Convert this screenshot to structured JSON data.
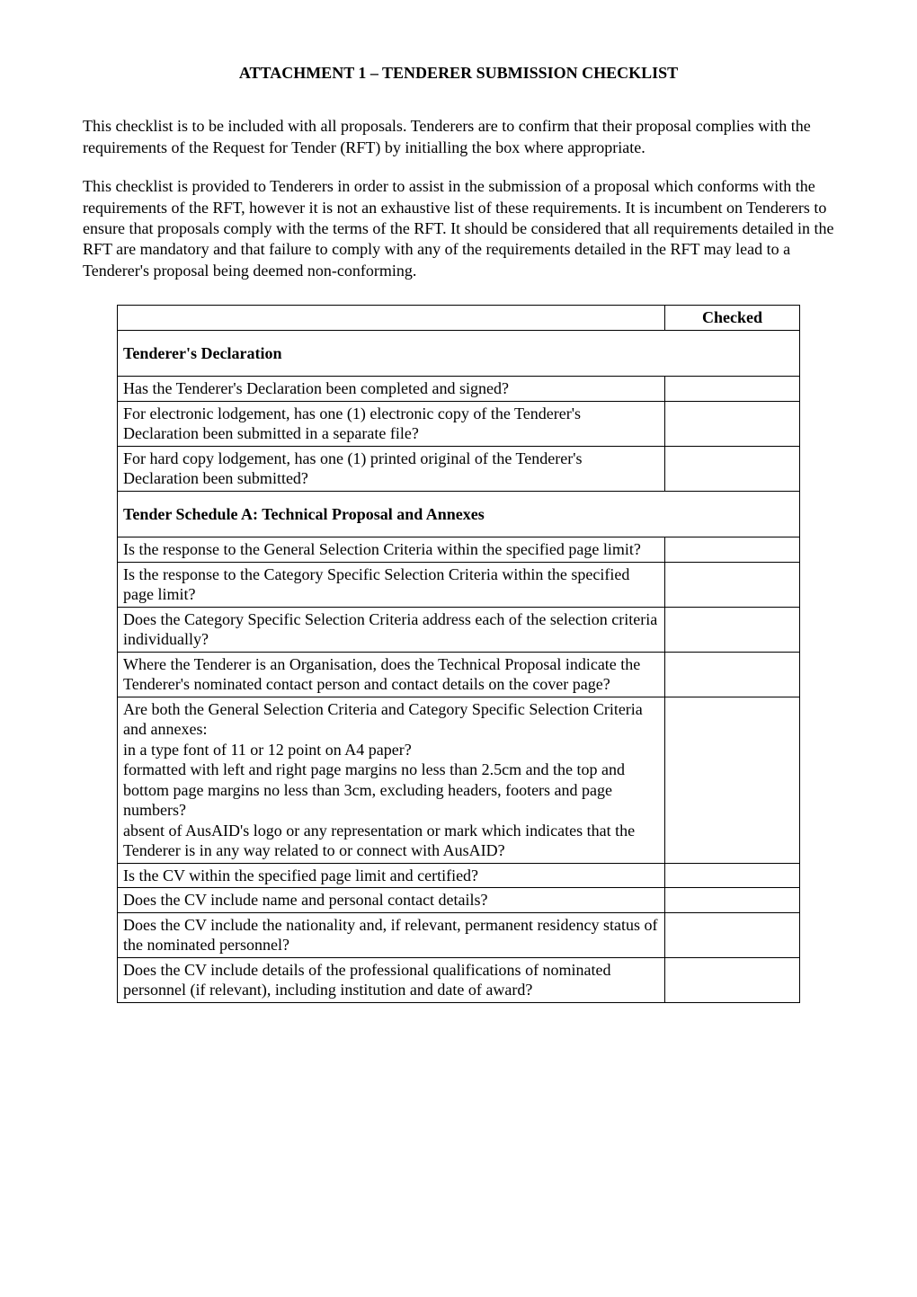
{
  "title": "ATTACHMENT 1 – TENDERER SUBMISSION CHECKLIST",
  "paragraph1": "This checklist is to be included with all proposals. Tenderers are to confirm that their proposal complies with the requirements of the Request for Tender (RFT) by initialling the box where appropriate.",
  "paragraph2": "This checklist is provided to Tenderers in order to assist in the submission of a proposal which conforms with the requirements of the RFT, however it is not an exhaustive list of these requirements. It is incumbent on Tenderers to ensure that proposals comply with the terms of the RFT. It should be considered that all requirements detailed in the RFT are mandatory and that failure to comply with any of the requirements detailed in the RFT may lead to a Tenderer's proposal being deemed non-conforming.",
  "table": {
    "checked_header": "Checked",
    "section1_header": "Tenderer's Declaration",
    "section1_rows": [
      "Has the Tenderer's Declaration been completed and signed?",
      "For electronic lodgement, has one (1) electronic copy of the Tenderer's Declaration been submitted in a separate file?",
      "For hard copy lodgement, has one (1) printed original of the Tenderer's Declaration been submitted?"
    ],
    "section2_header": "Tender Schedule A: Technical Proposal and Annexes",
    "section2_rows": [
      "Is the response to the General Selection Criteria within the specified page limit?",
      "Is the response to the Category Specific Selection Criteria within the specified page limit?",
      "Does the Category Specific Selection Criteria address each of the selection criteria individually?",
      "Where the Tenderer is an Organisation, does the Technical Proposal indicate the Tenderer's nominated contact person and contact details on the cover page?",
      "Are both the General Selection Criteria and Category Specific Selection Criteria and annexes:\nin a type font of 11 or 12 point on A4 paper?\nformatted with left and right page margins no less than 2.5cm and the top and bottom page margins no less than 3cm, excluding headers, footers and page numbers?\nabsent of AusAID's logo or any representation or mark which indicates that the Tenderer is in any way related to or connect with AusAID?",
      "Is the CV within the specified page limit and certified?",
      "Does the CV include name and personal contact details?",
      "Does the CV include the nationality and, if relevant, permanent residency status of the nominated personnel?",
      "Does the CV include details of the professional qualifications of nominated personnel (if relevant), including institution and date of award?"
    ]
  }
}
